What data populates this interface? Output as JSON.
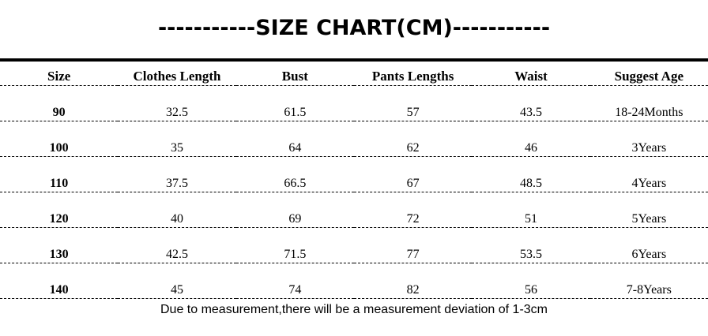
{
  "title": "-----------SIZE CHART(CM)-----------",
  "chart_data": {
    "type": "table",
    "title": "SIZE CHART(CM)",
    "columns": [
      "Size",
      "Clothes Length",
      "Bust",
      "Pants Lengths",
      "Waist",
      "Suggest Age"
    ],
    "rows": [
      [
        "90",
        "32.5",
        "61.5",
        "57",
        "43.5",
        "18-24Months"
      ],
      [
        "100",
        "35",
        "64",
        "62",
        "46",
        "3Years"
      ],
      [
        "110",
        "37.5",
        "66.5",
        "67",
        "48.5",
        "4Years"
      ],
      [
        "120",
        "40",
        "69",
        "72",
        "51",
        "5Years"
      ],
      [
        "130",
        "42.5",
        "71.5",
        "77",
        "53.5",
        "6Years"
      ],
      [
        "140",
        "45",
        "74",
        "82",
        "56",
        "7-8Years"
      ]
    ],
    "footnote": "Due to measurement,there will be a measurement deviation of 1-3cm"
  },
  "colors": {
    "text": "#000000",
    "background": "#ffffff"
  }
}
